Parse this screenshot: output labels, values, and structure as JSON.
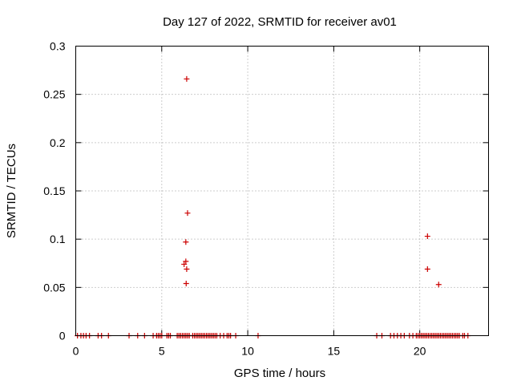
{
  "chart_data": {
    "type": "scatter",
    "title": "Day 127 of 2022, SRMTID for receiver av01",
    "xlabel": "GPS time / hours",
    "ylabel": "SRMTID / TECUs",
    "xlim": [
      0,
      24
    ],
    "ylim": [
      0,
      0.3
    ],
    "x_ticks": [
      0,
      5,
      10,
      15,
      20
    ],
    "x_tick_labels": [
      "0",
      "5",
      "10",
      "15",
      "20"
    ],
    "y_ticks": [
      0,
      0.05,
      0.1,
      0.15,
      0.2,
      0.25,
      0.3
    ],
    "y_tick_labels": [
      "0",
      "0.05",
      "0.1",
      "0.15",
      "0.2",
      "0.25",
      "0.3"
    ],
    "grid": true,
    "marker": "+",
    "color": "#cc0000",
    "points": [
      {
        "x": 6.45,
        "y": 0.266
      },
      {
        "x": 6.5,
        "y": 0.127
      },
      {
        "x": 20.45,
        "y": 0.103
      },
      {
        "x": 6.4,
        "y": 0.097
      },
      {
        "x": 6.4,
        "y": 0.077
      },
      {
        "x": 6.3,
        "y": 0.074
      },
      {
        "x": 6.45,
        "y": 0.069
      },
      {
        "x": 20.45,
        "y": 0.069
      },
      {
        "x": 6.42,
        "y": 0.054
      },
      {
        "x": 21.1,
        "y": 0.053
      },
      {
        "x": 0.1,
        "y": 0
      },
      {
        "x": 0.3,
        "y": 0
      },
      {
        "x": 0.45,
        "y": 0
      },
      {
        "x": 0.6,
        "y": 0
      },
      {
        "x": 0.8,
        "y": 0
      },
      {
        "x": 1.3,
        "y": 0
      },
      {
        "x": 1.5,
        "y": 0
      },
      {
        "x": 1.9,
        "y": 0
      },
      {
        "x": 3.1,
        "y": 0
      },
      {
        "x": 3.6,
        "y": 0
      },
      {
        "x": 4.0,
        "y": 0
      },
      {
        "x": 4.5,
        "y": 0
      },
      {
        "x": 4.7,
        "y": 0
      },
      {
        "x": 4.8,
        "y": 0
      },
      {
        "x": 4.9,
        "y": 0
      },
      {
        "x": 5.0,
        "y": 0
      },
      {
        "x": 5.3,
        "y": 0
      },
      {
        "x": 5.4,
        "y": 0
      },
      {
        "x": 5.5,
        "y": 0
      },
      {
        "x": 5.9,
        "y": 0
      },
      {
        "x": 6.0,
        "y": 0
      },
      {
        "x": 6.1,
        "y": 0
      },
      {
        "x": 6.2,
        "y": 0
      },
      {
        "x": 6.3,
        "y": 0
      },
      {
        "x": 6.4,
        "y": 0
      },
      {
        "x": 6.5,
        "y": 0
      },
      {
        "x": 6.6,
        "y": 0
      },
      {
        "x": 6.8,
        "y": 0
      },
      {
        "x": 6.9,
        "y": 0
      },
      {
        "x": 7.0,
        "y": 0
      },
      {
        "x": 7.1,
        "y": 0
      },
      {
        "x": 7.2,
        "y": 0
      },
      {
        "x": 7.3,
        "y": 0
      },
      {
        "x": 7.4,
        "y": 0
      },
      {
        "x": 7.5,
        "y": 0
      },
      {
        "x": 7.6,
        "y": 0
      },
      {
        "x": 7.7,
        "y": 0
      },
      {
        "x": 7.8,
        "y": 0
      },
      {
        "x": 7.9,
        "y": 0
      },
      {
        "x": 8.0,
        "y": 0
      },
      {
        "x": 8.1,
        "y": 0
      },
      {
        "x": 8.2,
        "y": 0
      },
      {
        "x": 8.4,
        "y": 0
      },
      {
        "x": 8.6,
        "y": 0
      },
      {
        "x": 8.8,
        "y": 0
      },
      {
        "x": 8.9,
        "y": 0
      },
      {
        "x": 9.0,
        "y": 0
      },
      {
        "x": 9.3,
        "y": 0
      },
      {
        "x": 10.6,
        "y": 0
      },
      {
        "x": 17.5,
        "y": 0
      },
      {
        "x": 17.8,
        "y": 0
      },
      {
        "x": 18.3,
        "y": 0
      },
      {
        "x": 18.5,
        "y": 0
      },
      {
        "x": 18.7,
        "y": 0
      },
      {
        "x": 18.9,
        "y": 0
      },
      {
        "x": 19.1,
        "y": 0
      },
      {
        "x": 19.4,
        "y": 0
      },
      {
        "x": 19.6,
        "y": 0
      },
      {
        "x": 19.8,
        "y": 0
      },
      {
        "x": 19.9,
        "y": 0
      },
      {
        "x": 20.0,
        "y": 0
      },
      {
        "x": 20.1,
        "y": 0
      },
      {
        "x": 20.2,
        "y": 0
      },
      {
        "x": 20.3,
        "y": 0
      },
      {
        "x": 20.4,
        "y": 0
      },
      {
        "x": 20.5,
        "y": 0
      },
      {
        "x": 20.6,
        "y": 0
      },
      {
        "x": 20.7,
        "y": 0
      },
      {
        "x": 20.8,
        "y": 0
      },
      {
        "x": 20.9,
        "y": 0
      },
      {
        "x": 21.0,
        "y": 0
      },
      {
        "x": 21.1,
        "y": 0
      },
      {
        "x": 21.2,
        "y": 0
      },
      {
        "x": 21.3,
        "y": 0
      },
      {
        "x": 21.4,
        "y": 0
      },
      {
        "x": 21.5,
        "y": 0
      },
      {
        "x": 21.6,
        "y": 0
      },
      {
        "x": 21.7,
        "y": 0
      },
      {
        "x": 21.8,
        "y": 0
      },
      {
        "x": 21.9,
        "y": 0
      },
      {
        "x": 22.0,
        "y": 0
      },
      {
        "x": 22.1,
        "y": 0
      },
      {
        "x": 22.2,
        "y": 0
      },
      {
        "x": 22.3,
        "y": 0
      },
      {
        "x": 22.5,
        "y": 0
      },
      {
        "x": 22.6,
        "y": 0
      },
      {
        "x": 22.8,
        "y": 0
      }
    ]
  }
}
